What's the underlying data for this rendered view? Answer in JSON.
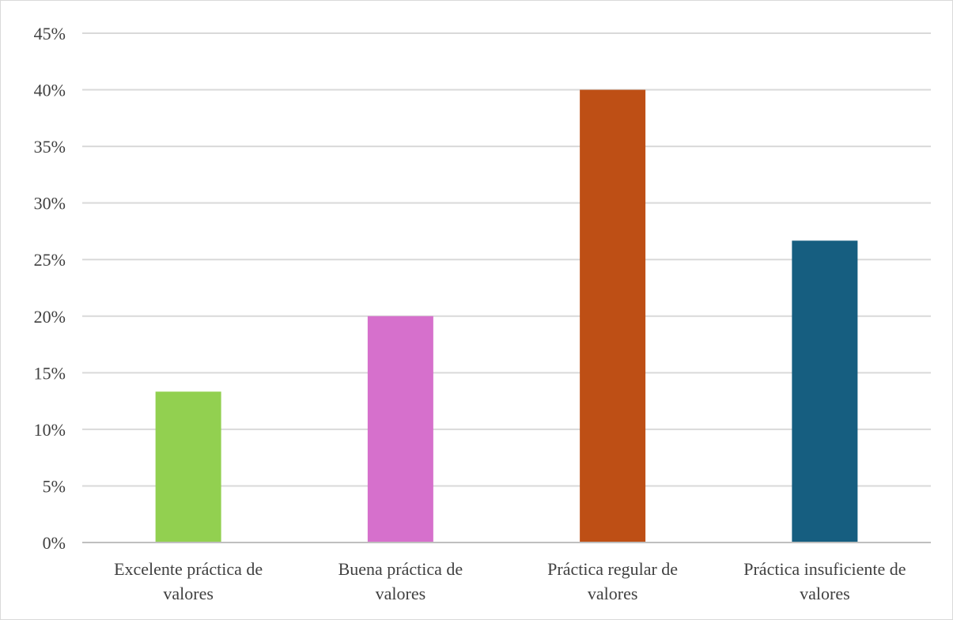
{
  "chart_data": {
    "type": "bar",
    "title": "",
    "xlabel": "",
    "ylabel": "",
    "categories": [
      [
        "Excelente práctica de",
        "valores"
      ],
      [
        "Buena práctica de",
        "valores"
      ],
      [
        "Práctica regular de",
        "valores"
      ],
      [
        "Práctica insuficiente de",
        "valores"
      ]
    ],
    "values": [
      13.33,
      20,
      40,
      26.67
    ],
    "colors": [
      "#92d050",
      "#d670cc",
      "#be4f15",
      "#165e80"
    ],
    "ylim": [
      0,
      45
    ],
    "yticks": [
      0,
      5,
      10,
      15,
      20,
      25,
      30,
      35,
      40,
      45
    ],
    "ytick_labels": [
      "0%",
      "5%",
      "10%",
      "15%",
      "20%",
      "25%",
      "30%",
      "35%",
      "40%",
      "45%"
    ],
    "grid": true,
    "legend": "none"
  }
}
